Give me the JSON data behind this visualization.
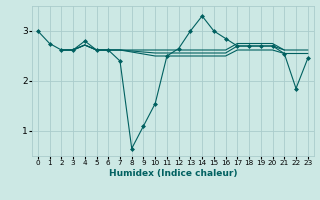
{
  "title": "",
  "xlabel": "Humidex (Indice chaleur)",
  "bg_color": "#cce8e4",
  "grid_color": "#aacccc",
  "line_color": "#006060",
  "xlim": [
    -0.5,
    23.5
  ],
  "ylim": [
    0.5,
    3.5
  ],
  "yticks": [
    1,
    2,
    3
  ],
  "xticks": [
    0,
    1,
    2,
    3,
    4,
    5,
    6,
    7,
    8,
    9,
    10,
    11,
    12,
    13,
    14,
    15,
    16,
    17,
    18,
    19,
    20,
    21,
    22,
    23
  ],
  "series1": {
    "x": [
      0,
      1,
      2,
      3,
      4,
      5,
      6,
      7,
      8,
      9,
      10,
      11,
      12,
      13,
      14,
      15,
      16,
      17,
      18,
      19,
      20,
      21,
      22,
      23
    ],
    "y": [
      3.0,
      2.75,
      2.62,
      2.62,
      2.8,
      2.62,
      2.62,
      2.4,
      0.65,
      1.1,
      1.55,
      2.5,
      2.65,
      3.0,
      3.3,
      3.0,
      2.85,
      2.7,
      2.7,
      2.7,
      2.7,
      2.55,
      1.85,
      2.45
    ]
  },
  "series2": {
    "x": [
      2,
      3,
      4,
      5,
      6,
      7,
      10,
      11,
      12,
      13,
      14,
      15,
      16,
      17,
      18,
      19,
      20,
      21,
      22,
      23
    ],
    "y": [
      2.62,
      2.62,
      2.72,
      2.62,
      2.62,
      2.62,
      2.5,
      2.5,
      2.5,
      2.5,
      2.5,
      2.5,
      2.5,
      2.62,
      2.62,
      2.62,
      2.62,
      2.55,
      2.55,
      2.55
    ]
  },
  "series3": {
    "x": [
      2,
      3,
      4,
      5,
      6,
      7,
      10,
      11,
      12,
      13,
      14,
      15,
      16,
      17,
      18,
      19,
      20,
      21,
      22,
      23
    ],
    "y": [
      2.62,
      2.62,
      2.72,
      2.62,
      2.62,
      2.62,
      2.56,
      2.56,
      2.56,
      2.56,
      2.56,
      2.56,
      2.56,
      2.7,
      2.7,
      2.7,
      2.7,
      2.62,
      2.62,
      2.62
    ]
  },
  "series4": {
    "x": [
      2,
      3,
      4,
      5,
      6,
      7,
      10,
      11,
      12,
      13,
      14,
      15,
      16,
      17,
      18,
      19,
      20,
      21
    ],
    "y": [
      2.62,
      2.62,
      2.72,
      2.62,
      2.62,
      2.62,
      2.62,
      2.62,
      2.62,
      2.62,
      2.62,
      2.62,
      2.62,
      2.75,
      2.75,
      2.75,
      2.75,
      2.62
    ]
  }
}
